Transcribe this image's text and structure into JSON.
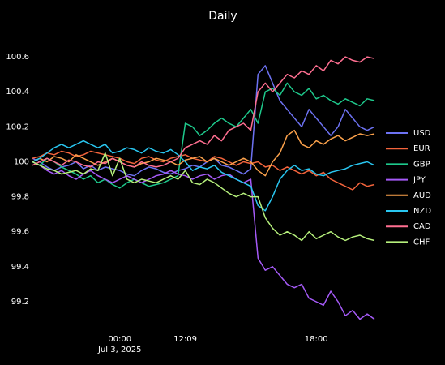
{
  "chart_data": {
    "type": "line",
    "title": "Daily",
    "categories": [
      null,
      null,
      null,
      null,
      null,
      null,
      null,
      null,
      null,
      null,
      null,
      null,
      "00:00\nJul 3, 2025",
      null,
      null,
      null,
      null,
      null,
      null,
      null,
      null,
      "12:09",
      null,
      null,
      null,
      null,
      null,
      null,
      null,
      null,
      null,
      null,
      null,
      null,
      null,
      null,
      null,
      null,
      null,
      "18:00",
      null,
      null,
      null,
      null,
      null,
      null,
      null,
      null
    ],
    "ylim": [
      99.07,
      100.67
    ],
    "yticks": [
      99.2,
      99.4,
      99.6,
      99.8,
      100,
      100.2,
      100.4,
      100.6
    ],
    "grid": false,
    "legend": "right",
    "series": [
      {
        "name": "USD",
        "color": "#6d72f2",
        "values": [
          100.02,
          100.0,
          99.97,
          99.95,
          99.97,
          99.98,
          100.0,
          99.96,
          99.98,
          99.95,
          99.97,
          99.96,
          99.95,
          99.93,
          99.92,
          99.95,
          99.97,
          99.96,
          99.94,
          99.93,
          99.95,
          99.96,
          99.98,
          99.97,
          100.0,
          100.02,
          99.98,
          99.97,
          99.95,
          99.93,
          99.96,
          100.5,
          100.55,
          100.45,
          100.35,
          100.3,
          100.25,
          100.2,
          100.3,
          100.25,
          100.2,
          100.15,
          100.2,
          100.3,
          100.25,
          100.2,
          100.18,
          100.2
        ]
      },
      {
        "name": "EUR",
        "color": "#f4643c",
        "values": [
          100.02,
          100.03,
          100.05,
          100.04,
          100.06,
          100.05,
          100.03,
          100.04,
          100.06,
          100.05,
          100.04,
          100.03,
          100.02,
          100.0,
          99.99,
          100.02,
          100.03,
          100.01,
          100.0,
          100.02,
          100.03,
          100.04,
          100.02,
          100.01,
          100.0,
          100.03,
          100.02,
          100.0,
          99.98,
          100.0,
          99.99,
          100.0,
          99.97,
          99.98,
          99.95,
          99.97,
          99.95,
          99.93,
          99.95,
          99.92,
          99.94,
          99.9,
          99.88,
          99.86,
          99.84,
          99.88,
          99.86,
          99.87
        ]
      },
      {
        "name": "GBP",
        "color": "#1ec98c",
        "values": [
          100.0,
          99.98,
          100.02,
          100.0,
          99.97,
          99.95,
          99.93,
          99.9,
          99.92,
          99.88,
          99.9,
          99.87,
          99.85,
          99.88,
          99.9,
          99.88,
          99.86,
          99.87,
          99.88,
          99.9,
          99.92,
          100.22,
          100.2,
          100.15,
          100.18,
          100.22,
          100.25,
          100.22,
          100.2,
          100.25,
          100.3,
          100.22,
          100.4,
          100.42,
          100.38,
          100.45,
          100.4,
          100.38,
          100.42,
          100.36,
          100.38,
          100.35,
          100.33,
          100.36,
          100.34,
          100.32,
          100.36,
          100.35
        ]
      },
      {
        "name": "JPY",
        "color": "#a55af7",
        "values": [
          100.0,
          99.98,
          99.95,
          99.93,
          99.95,
          99.92,
          99.9,
          99.93,
          99.95,
          99.92,
          99.9,
          99.88,
          99.9,
          99.92,
          99.9,
          99.88,
          99.9,
          99.92,
          99.93,
          99.95,
          99.93,
          99.92,
          99.9,
          99.92,
          99.93,
          99.9,
          99.92,
          99.93,
          99.9,
          99.88,
          99.9,
          99.45,
          99.38,
          99.4,
          99.35,
          99.3,
          99.28,
          99.3,
          99.22,
          99.2,
          99.18,
          99.26,
          99.2,
          99.12,
          99.15,
          99.1,
          99.13,
          99.1
        ]
      },
      {
        "name": "AUD",
        "color": "#fba14b",
        "values": [
          100.0,
          100.02,
          100.0,
          100.03,
          100.02,
          100.0,
          100.04,
          100.02,
          100.0,
          99.98,
          100.0,
          100.02,
          100.0,
          99.98,
          99.97,
          99.99,
          100.0,
          100.02,
          100.01,
          100.0,
          99.98,
          100.01,
          100.02,
          100.03,
          100.0,
          100.02,
          100.0,
          99.98,
          100.0,
          100.02,
          100.0,
          99.95,
          99.92,
          100.0,
          100.05,
          100.15,
          100.18,
          100.1,
          100.08,
          100.12,
          100.1,
          100.13,
          100.15,
          100.12,
          100.14,
          100.16,
          100.15,
          100.16
        ]
      },
      {
        "name": "NZD",
        "color": "#29c6f0",
        "values": [
          100.0,
          100.02,
          100.05,
          100.08,
          100.1,
          100.08,
          100.1,
          100.12,
          100.1,
          100.08,
          100.1,
          100.05,
          100.06,
          100.08,
          100.07,
          100.05,
          100.08,
          100.06,
          100.05,
          100.07,
          100.04,
          100.0,
          99.95,
          99.97,
          99.96,
          99.98,
          99.94,
          99.92,
          99.9,
          99.88,
          99.86,
          99.75,
          99.72,
          99.8,
          99.9,
          99.95,
          99.98,
          99.95,
          99.96,
          99.93,
          99.92,
          99.94,
          99.95,
          99.96,
          99.98,
          99.99,
          100.0,
          99.98
        ]
      },
      {
        "name": "CAD",
        "color": "#ff6f91",
        "values": [
          99.98,
          100.0,
          100.02,
          100.0,
          99.98,
          100.01,
          100.0,
          99.98,
          99.97,
          100.0,
          99.99,
          100.02,
          100.0,
          99.98,
          99.97,
          100.0,
          99.98,
          99.97,
          99.98,
          100.0,
          100.02,
          100.08,
          100.1,
          100.12,
          100.1,
          100.15,
          100.12,
          100.18,
          100.2,
          100.22,
          100.18,
          100.4,
          100.45,
          100.4,
          100.45,
          100.5,
          100.48,
          100.52,
          100.5,
          100.55,
          100.52,
          100.58,
          100.56,
          100.6,
          100.58,
          100.57,
          100.6,
          100.59
        ]
      },
      {
        "name": "CHF",
        "color": "#b6f07c",
        "values": [
          100.0,
          99.98,
          99.96,
          99.95,
          99.93,
          99.94,
          99.95,
          99.93,
          99.96,
          99.95,
          100.05,
          99.92,
          100.02,
          99.9,
          99.88,
          99.9,
          99.89,
          99.88,
          99.9,
          99.92,
          99.9,
          99.95,
          99.88,
          99.87,
          99.9,
          99.88,
          99.85,
          99.82,
          99.8,
          99.82,
          99.8,
          99.8,
          99.68,
          99.62,
          99.58,
          99.6,
          99.58,
          99.55,
          99.6,
          99.56,
          99.58,
          99.6,
          99.57,
          99.55,
          99.57,
          99.58,
          99.56,
          99.55
        ]
      }
    ]
  }
}
